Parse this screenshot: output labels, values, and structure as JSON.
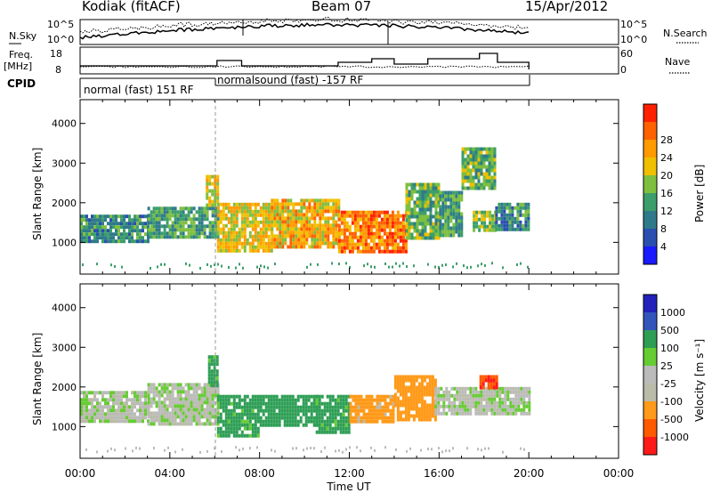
{
  "header": {
    "station": "Kodiak (fitACF)",
    "beam": "Beam 07",
    "date": "15/Apr/2012"
  },
  "left_labels": {
    "nsky": "N.Sky",
    "freq": "Freq.",
    "mhz": "[MHz]",
    "cpid": "CPID"
  },
  "right_labels": {
    "nsearch": "N.Search",
    "nave": "Nave"
  },
  "noise_panel": {
    "left_ticks": [
      "10^5",
      "10^0"
    ],
    "right_ticks": [
      "10^5",
      "10^0"
    ]
  },
  "freq_panel": {
    "left_ticks": [
      "18",
      "8"
    ],
    "right_ticks": [
      "60",
      "0"
    ]
  },
  "cpid_panel": {
    "mode1": "normal (fast) 151 RF",
    "mode2": "normalsound (fast) -157 RF"
  },
  "colors": {
    "power_scale": [
      "#1a1aff",
      "#2a4fb0",
      "#2f7a8a",
      "#3c9e6a",
      "#7fbf3f",
      "#f0c000",
      "#ff9a00",
      "#ff6000",
      "#ff2000"
    ],
    "velocity_scale": [
      "#ff1a1a",
      "#ff5a00",
      "#ff9a1a",
      "#bbbbaa",
      "#bbbbbb",
      "#66cc33",
      "#2e9e55",
      "#3355bb",
      "#2222bb"
    ]
  },
  "chart_data": [
    {
      "type": "heatmap",
      "name": "power",
      "x_axis_label": "Time UT",
      "x_tick_labels": [
        "00:00",
        "04:00",
        "08:00",
        "12:00",
        "16:00",
        "20:00",
        "00:00"
      ],
      "xlim": [
        0,
        24
      ],
      "ylabel": "Slant Range [km]",
      "y_ticks": [
        1000,
        2000,
        3000,
        4000
      ],
      "ylim": [
        200,
        4600
      ],
      "colorbar_label": "Power [dB]",
      "colorbar_ticks": [
        "4",
        "8",
        "12",
        "16",
        "20",
        "24",
        "28"
      ],
      "colorbar_range": [
        0,
        32
      ],
      "regions": [
        {
          "t_start": 0.0,
          "t_end": 3.0,
          "r_low": 1000,
          "r_high": 1700,
          "level": 12
        },
        {
          "t_start": 3.0,
          "t_end": 6.1,
          "r_low": 1100,
          "r_high": 1900,
          "level": 14
        },
        {
          "t_start": 5.6,
          "t_end": 6.1,
          "r_low": 1900,
          "r_high": 2700,
          "level": 22
        },
        {
          "t_start": 6.1,
          "t_end": 8.5,
          "r_low": 800,
          "r_high": 2000,
          "level": 22
        },
        {
          "t_start": 8.5,
          "t_end": 11.5,
          "r_low": 900,
          "r_high": 2100,
          "level": 24
        },
        {
          "t_start": 11.5,
          "t_end": 14.5,
          "r_low": 800,
          "r_high": 1800,
          "level": 28
        },
        {
          "t_start": 14.5,
          "t_end": 16.0,
          "r_low": 1100,
          "r_high": 2500,
          "level": 16
        },
        {
          "t_start": 16.0,
          "t_end": 17.0,
          "r_low": 1200,
          "r_high": 2300,
          "level": 14
        },
        {
          "t_start": 17.0,
          "t_end": 18.5,
          "r_low": 2400,
          "r_high": 3400,
          "level": 16
        },
        {
          "t_start": 17.5,
          "t_end": 18.5,
          "r_low": 1300,
          "r_high": 1800,
          "level": 18
        },
        {
          "t_start": 18.5,
          "t_end": 20.0,
          "r_low": 1300,
          "r_high": 2000,
          "level": 12
        }
      ]
    },
    {
      "type": "heatmap",
      "name": "velocity",
      "x_axis_label": "Time UT",
      "x_tick_labels": [
        "00:00",
        "04:00",
        "08:00",
        "12:00",
        "16:00",
        "20:00",
        "00:00"
      ],
      "xlim": [
        0,
        24
      ],
      "ylabel": "Slant Range [km]",
      "y_ticks": [
        1000,
        2000,
        3000,
        4000
      ],
      "ylim": [
        200,
        4600
      ],
      "colorbar_label": "Velocity [m s⁻¹]",
      "colorbar_ticks": [
        "-1000",
        "-500",
        "-100",
        "-25",
        "25",
        "100",
        "500",
        "1000"
      ],
      "colorbar_range": [
        -1500,
        1500
      ],
      "regions": [
        {
          "t_start": 0.0,
          "t_end": 3.0,
          "r_low": 1100,
          "r_high": 1900,
          "level": 0
        },
        {
          "t_start": 3.0,
          "t_end": 6.1,
          "r_low": 1100,
          "r_high": 2100,
          "level": 0
        },
        {
          "t_start": 5.7,
          "t_end": 6.1,
          "r_low": 2000,
          "r_high": 2800,
          "level": 150
        },
        {
          "t_start": 6.1,
          "t_end": 8.0,
          "r_low": 800,
          "r_high": 1800,
          "level": 150
        },
        {
          "t_start": 8.0,
          "t_end": 10.5,
          "r_low": 1000,
          "r_high": 1800,
          "level": 400
        },
        {
          "t_start": 10.5,
          "t_end": 12.0,
          "r_low": 900,
          "r_high": 1800,
          "level": 150
        },
        {
          "t_start": 12.0,
          "t_end": 14.0,
          "r_low": 1100,
          "r_high": 1800,
          "level": -150
        },
        {
          "t_start": 14.0,
          "t_end": 15.8,
          "r_low": 1200,
          "r_high": 2300,
          "level": -300
        },
        {
          "t_start": 15.8,
          "t_end": 20.0,
          "r_low": 1300,
          "r_high": 2000,
          "level": 0
        },
        {
          "t_start": 17.8,
          "t_end": 18.6,
          "r_low": 2000,
          "r_high": 2300,
          "level": -1000
        }
      ]
    }
  ]
}
